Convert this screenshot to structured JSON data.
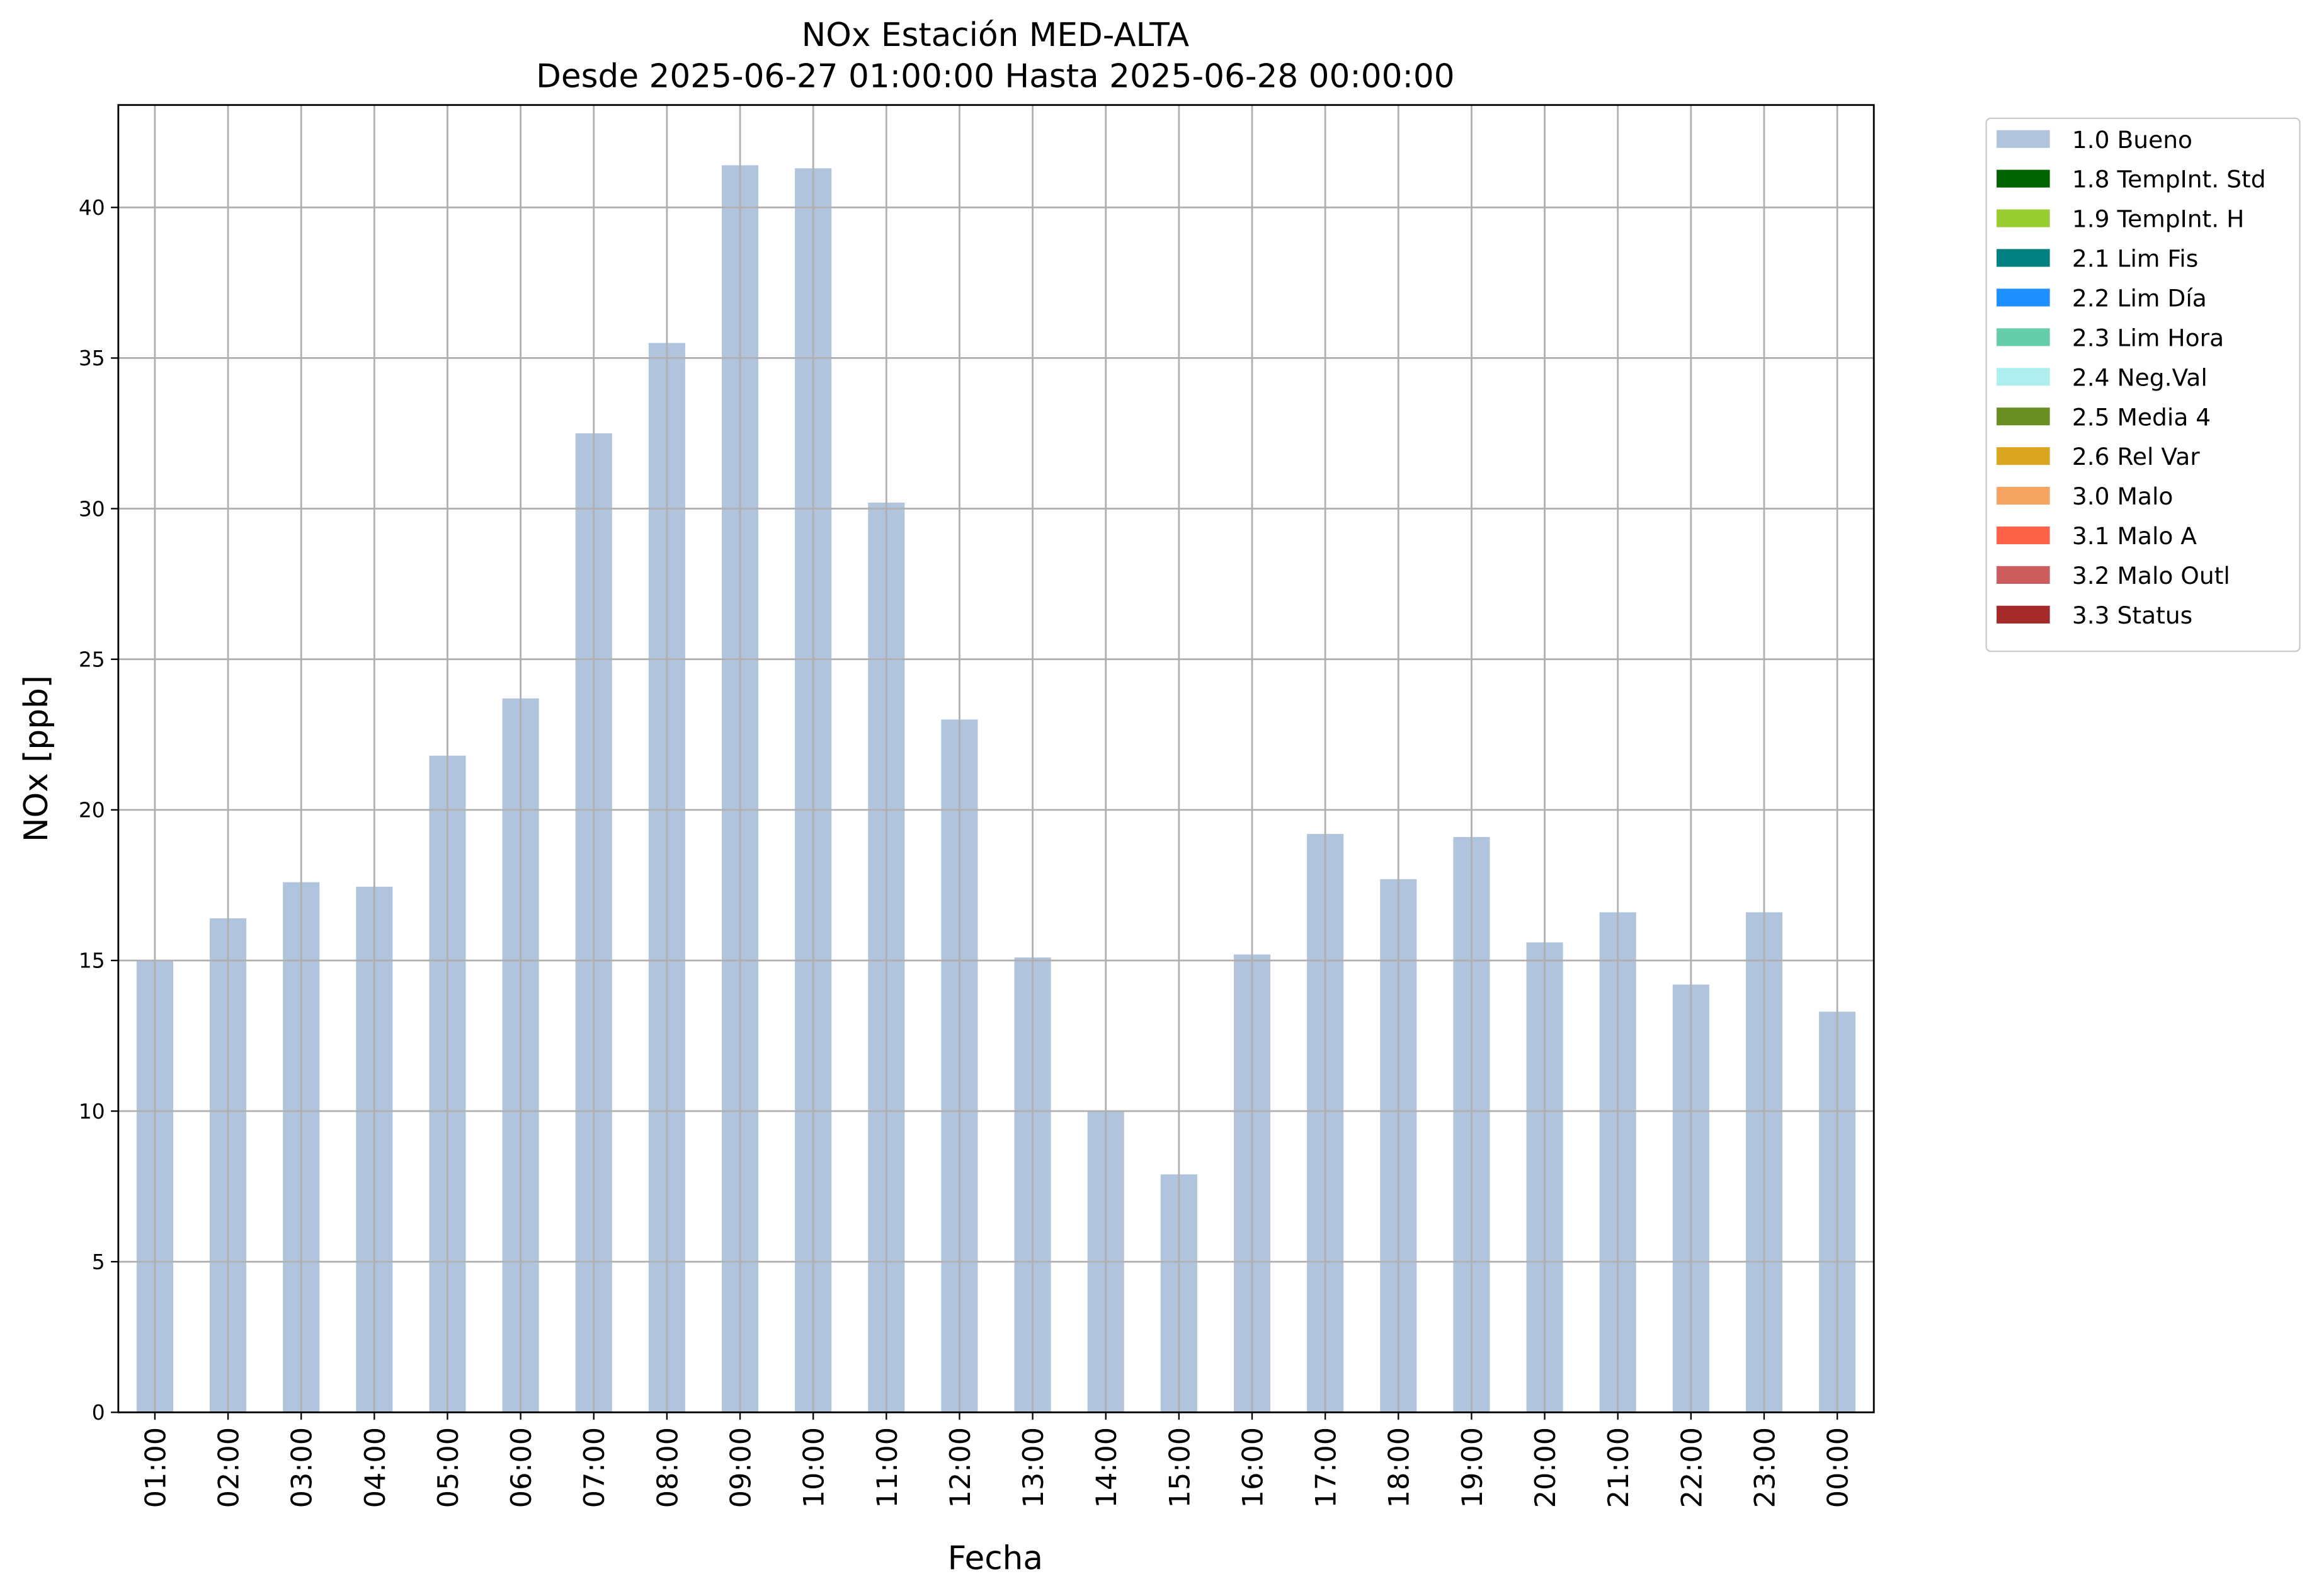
{
  "chart_data": {
    "type": "stacked-bar",
    "title": "NOx Estación MED-ALTA",
    "subtitle": "Desde 2025-06-27 01:00:00 Hasta 2025-06-28 00:00:00",
    "x_label": "Fecha",
    "y_label": "NOx [ppb]",
    "categories": [
      "01:00",
      "02:00",
      "03:00",
      "04:00",
      "05:00",
      "06:00",
      "07:00",
      "08:00",
      "09:00",
      "10:00",
      "11:00",
      "12:00",
      "13:00",
      "14:00",
      "15:00",
      "16:00",
      "17:00",
      "18:00",
      "19:00",
      "20:00",
      "21:00",
      "22:00",
      "23:00",
      "00:00"
    ],
    "series": [
      {
        "name": "1.0 Bueno",
        "color": "#b0c4de",
        "values": [
          15.0,
          16.4,
          17.6,
          17.45,
          21.8,
          23.7,
          32.5,
          35.5,
          41.4,
          41.3,
          30.2,
          23.0,
          15.1,
          10.0,
          7.9,
          15.2,
          19.2,
          17.7,
          19.1,
          15.6,
          16.6,
          14.2,
          16.6,
          13.3
        ]
      },
      {
        "name": "1.8 TempInt. Std",
        "color": "#006400",
        "values": [
          0,
          0,
          0,
          0,
          0,
          0,
          0,
          0,
          0,
          0,
          0,
          0,
          0,
          0,
          0,
          0,
          0,
          0,
          0,
          0,
          0,
          0,
          0,
          0
        ]
      },
      {
        "name": "1.9 TempInt. H",
        "color": "#9acd32",
        "values": [
          0,
          0,
          0,
          0,
          0,
          0,
          0,
          0,
          0,
          0,
          0,
          0,
          0,
          0,
          0,
          0,
          0,
          0,
          0,
          0,
          0,
          0,
          0,
          0
        ]
      },
      {
        "name": "2.1 Lim Fis",
        "color": "#008080",
        "values": [
          0,
          0,
          0,
          0,
          0,
          0,
          0,
          0,
          0,
          0,
          0,
          0,
          0,
          0,
          0,
          0,
          0,
          0,
          0,
          0,
          0,
          0,
          0,
          0
        ]
      },
      {
        "name": "2.2 Lim Día",
        "color": "#1e90ff",
        "values": [
          0,
          0,
          0,
          0,
          0,
          0,
          0,
          0,
          0,
          0,
          0,
          0,
          0,
          0,
          0,
          0,
          0,
          0,
          0,
          0,
          0,
          0,
          0,
          0
        ]
      },
      {
        "name": "2.3 Lim Hora",
        "color": "#66cdaa",
        "values": [
          0,
          0,
          0,
          0,
          0,
          0,
          0,
          0,
          0,
          0,
          0,
          0,
          0,
          0,
          0,
          0,
          0,
          0,
          0,
          0,
          0,
          0,
          0,
          0
        ]
      },
      {
        "name": "2.4 Neg.Val",
        "color": "#afeeee",
        "values": [
          0,
          0,
          0,
          0,
          0,
          0,
          0,
          0,
          0,
          0,
          0,
          0,
          0,
          0,
          0,
          0,
          0,
          0,
          0,
          0,
          0,
          0,
          0,
          0
        ]
      },
      {
        "name": "2.5 Media 4",
        "color": "#6b8e23",
        "values": [
          0,
          0,
          0,
          0,
          0,
          0,
          0,
          0,
          0,
          0,
          0,
          0,
          0,
          0,
          0,
          0,
          0,
          0,
          0,
          0,
          0,
          0,
          0,
          0
        ]
      },
      {
        "name": "2.6 Rel Var",
        "color": "#daa520",
        "values": [
          0,
          0,
          0,
          0,
          0,
          0,
          0,
          0,
          0,
          0,
          0,
          0,
          0,
          0,
          0,
          0,
          0,
          0,
          0,
          0,
          0,
          0,
          0,
          0
        ]
      },
      {
        "name": "3.0 Malo",
        "color": "#f4a460",
        "values": [
          0,
          0,
          0,
          0,
          0,
          0,
          0,
          0,
          0,
          0,
          0,
          0,
          0,
          0,
          0,
          0,
          0,
          0,
          0,
          0,
          0,
          0,
          0,
          0
        ]
      },
      {
        "name": "3.1 Malo A",
        "color": "#ff6347",
        "values": [
          0,
          0,
          0,
          0,
          0,
          0,
          0,
          0,
          0,
          0,
          0,
          0,
          0,
          0,
          0,
          0,
          0,
          0,
          0,
          0,
          0,
          0,
          0,
          0
        ]
      },
      {
        "name": "3.2 Malo Outl",
        "color": "#cd5c5c",
        "values": [
          0,
          0,
          0,
          0,
          0,
          0,
          0,
          0,
          0,
          0,
          0,
          0,
          0,
          0,
          0,
          0,
          0,
          0,
          0,
          0,
          0,
          0,
          0,
          0
        ]
      },
      {
        "name": "3.3 Status",
        "color": "#a52a2a",
        "values": [
          0,
          0,
          0,
          0,
          0,
          0,
          0,
          0,
          0,
          0,
          0,
          0,
          0,
          0,
          0,
          0,
          0,
          0,
          0,
          0,
          0,
          0,
          0,
          0
        ]
      }
    ],
    "ylim": [
      0,
      43.4
    ],
    "yticks": [
      0,
      5,
      10,
      15,
      20,
      25,
      30,
      35,
      40
    ],
    "grid": true,
    "legend": "outside"
  }
}
